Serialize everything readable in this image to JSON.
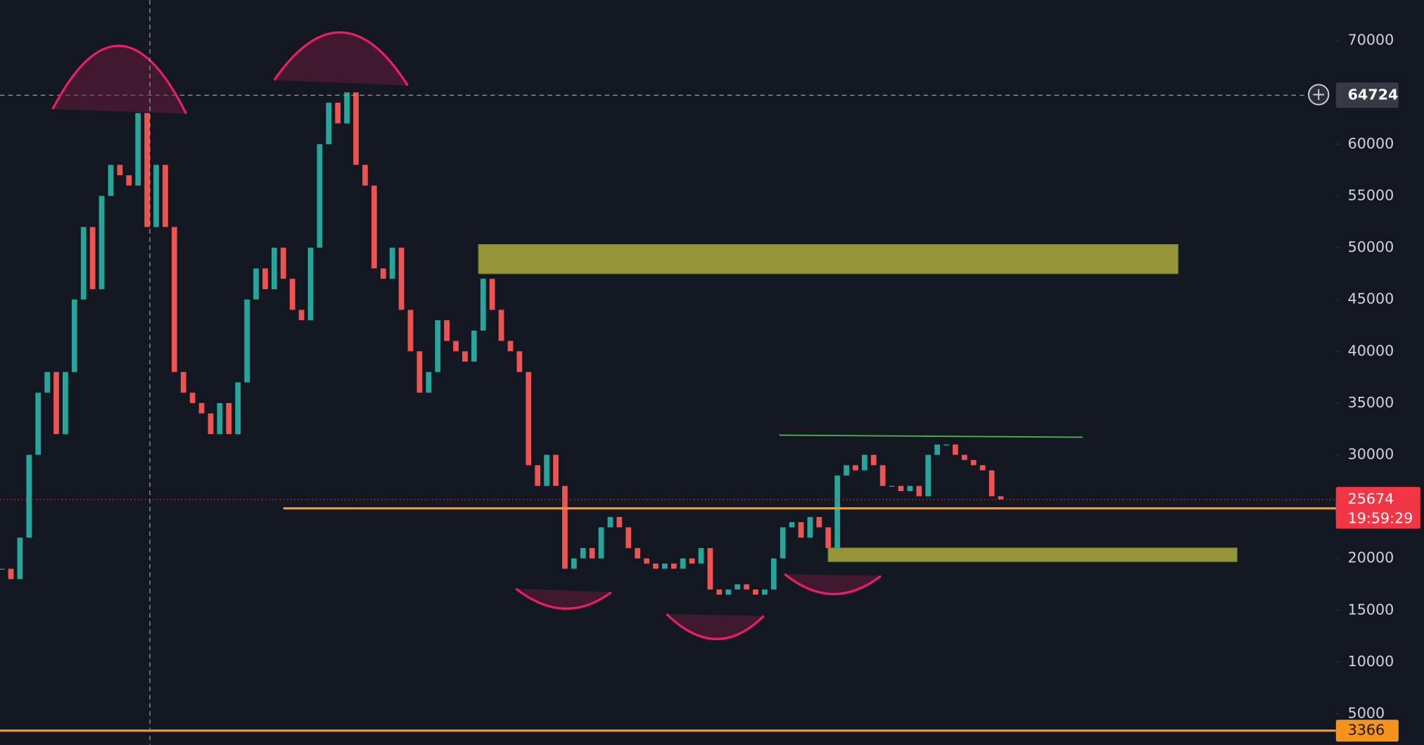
{
  "chart_data": {
    "type": "candlestick",
    "values": [
      19000,
      18000,
      22000,
      30000,
      36000,
      38000,
      32000,
      38000,
      45000,
      52000,
      46000,
      55000,
      58000,
      57000,
      56000,
      63000,
      52000,
      58000,
      52000,
      38000,
      36000,
      35000,
      34000,
      32000,
      35000,
      32000,
      37000,
      45000,
      48000,
      46000,
      50000,
      47000,
      44000,
      43000,
      50000,
      60000,
      64000,
      62000,
      65000,
      58000,
      56000,
      48000,
      47000,
      50000,
      44000,
      40000,
      36000,
      38000,
      43000,
      41000,
      40000,
      39000,
      42000,
      47000,
      44000,
      41000,
      40000,
      38000,
      29000,
      27000,
      30000,
      27000,
      19000,
      20000,
      21000,
      20000,
      23000,
      24000,
      23000,
      21000,
      20000,
      19500,
      19000,
      19500,
      19000,
      20000,
      19500,
      21000,
      17000,
      16500,
      17000,
      17500,
      17000,
      16500,
      17000,
      20000,
      23000,
      23500,
      22000,
      24000,
      23000,
      21000,
      28000,
      29000,
      28500,
      30000,
      29000,
      27000,
      27000,
      26500,
      27000,
      26000,
      30000,
      31000,
      31000,
      30000,
      29500,
      29000,
      28500,
      26000,
      25700
    ],
    "up_color": "#26a69a",
    "down_color": "#ef5350",
    "ylim": [
      2000,
      73900
    ],
    "yticks": [
      5000,
      10000,
      15000,
      20000,
      25000,
      30000,
      35000,
      40000,
      45000,
      50000,
      55000,
      60000,
      65000,
      70000
    ],
    "crosshair_price": 64724,
    "last_price": 25674,
    "last_color": "#f23645",
    "countdown": "19:59:29",
    "levels": [
      {
        "price": 24828,
        "color": "#f7931a"
      },
      {
        "price": 3366,
        "color": "#f7931a"
      }
    ],
    "zones": [
      {
        "low": 47500,
        "high": 50300,
        "color": "#a5a33a"
      },
      {
        "low": 19700,
        "high": 21000,
        "color": "#a5a33a"
      }
    ],
    "trendline": {
      "start": 31900,
      "end": 31700,
      "color": "#4caf50"
    }
  }
}
